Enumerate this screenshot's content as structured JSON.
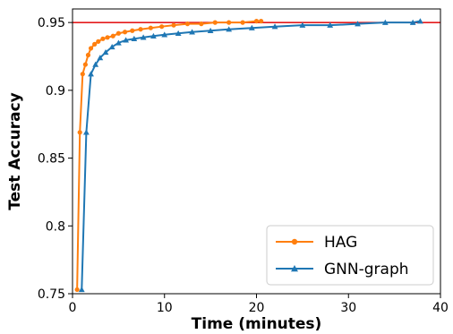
{
  "chart_data": {
    "type": "line",
    "title": "",
    "xlabel": "Time (minutes)",
    "ylabel": "Test Accuracy",
    "xlim": [
      0,
      40
    ],
    "ylim": [
      0.75,
      0.96
    ],
    "xticks": [
      0,
      10,
      20,
      30,
      40
    ],
    "xtick_labels": [
      "0",
      "10",
      "20",
      "30",
      "40"
    ],
    "yticks": [
      0.75,
      0.8,
      0.85,
      0.9,
      0.95
    ],
    "ytick_labels": [
      "0.75",
      "0.8",
      "0.85",
      "0.9",
      "0.95"
    ],
    "grid": false,
    "legend_position": "bottom-right",
    "reference_line": {
      "y": 0.95,
      "color": "#e41a1c"
    },
    "series": [
      {
        "name": "HAG",
        "color": "#ff7f0e",
        "marker": "circle",
        "x": [
          0.5,
          0.8,
          1.1,
          1.4,
          1.7,
          2.0,
          2.4,
          2.8,
          3.3,
          3.8,
          4.4,
          5.0,
          5.7,
          6.5,
          7.4,
          8.5,
          9.7,
          11.0,
          12.5,
          14.0,
          15.5,
          17.0,
          18.5,
          20.0,
          20.5
        ],
        "y": [
          0.753,
          0.869,
          0.912,
          0.919,
          0.926,
          0.931,
          0.934,
          0.936,
          0.938,
          0.939,
          0.94,
          0.942,
          0.943,
          0.944,
          0.945,
          0.946,
          0.947,
          0.948,
          0.949,
          0.949,
          0.95,
          0.95,
          0.95,
          0.951,
          0.951
        ]
      },
      {
        "name": "GNN-graph",
        "color": "#1f77b4",
        "marker": "triangle",
        "x": [
          1.0,
          1.5,
          2.0,
          2.5,
          3.0,
          3.6,
          4.3,
          5.0,
          5.8,
          6.7,
          7.7,
          8.8,
          10.0,
          11.5,
          13.0,
          15.0,
          17.0,
          19.5,
          22.0,
          25.0,
          28.0,
          31.0,
          34.0,
          37.0,
          37.8
        ],
        "y": [
          0.753,
          0.869,
          0.912,
          0.919,
          0.924,
          0.928,
          0.932,
          0.935,
          0.937,
          0.938,
          0.939,
          0.94,
          0.941,
          0.942,
          0.943,
          0.944,
          0.945,
          0.946,
          0.947,
          0.948,
          0.948,
          0.949,
          0.95,
          0.95,
          0.951
        ]
      }
    ]
  }
}
